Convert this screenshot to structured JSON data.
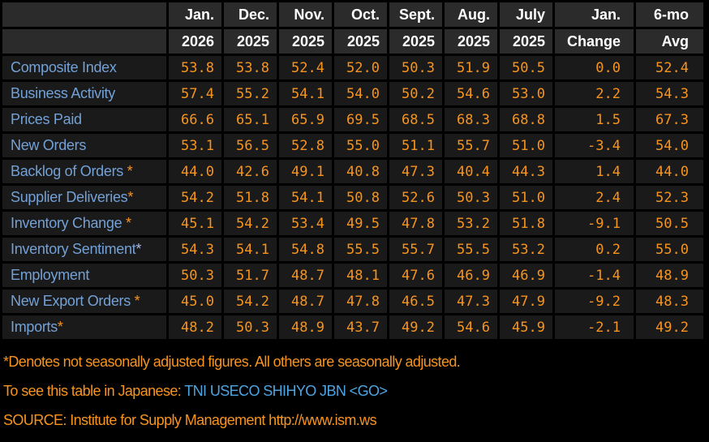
{
  "table": {
    "header_top": [
      "",
      "Jan.",
      "Dec.",
      "Nov.",
      "Oct.",
      "Sept.",
      "Aug.",
      "July",
      "Jan.",
      "6-mo"
    ],
    "header_bottom": [
      "",
      "2026",
      "2025",
      "2025",
      "2025",
      "2025",
      "2025",
      "2025",
      "Change",
      "Avg"
    ],
    "rows": [
      {
        "label": "Composite Index",
        "asterisk": "",
        "asterisk_color": "",
        "values": [
          "53.8",
          "53.8",
          "52.4",
          "52.0",
          "50.3",
          "51.9",
          "50.5",
          "0.0",
          "52.4"
        ]
      },
      {
        "label": "Business Activity",
        "asterisk": "",
        "asterisk_color": "",
        "values": [
          "57.4",
          "55.2",
          "54.1",
          "54.0",
          "50.2",
          "54.6",
          "53.0",
          "2.2",
          "54.3"
        ]
      },
      {
        "label": "Prices Paid",
        "asterisk": "",
        "asterisk_color": "",
        "values": [
          "66.6",
          "65.1",
          "65.9",
          "69.5",
          "68.5",
          "68.3",
          "68.8",
          "1.5",
          "67.3"
        ]
      },
      {
        "label": "New Orders",
        "asterisk": "",
        "asterisk_color": "",
        "values": [
          "53.1",
          "56.5",
          "52.8",
          "55.0",
          "51.1",
          "55.7",
          "51.0",
          "-3.4",
          "54.0"
        ]
      },
      {
        "label": "Backlog of Orders",
        "asterisk": " *",
        "asterisk_color": "amber",
        "values": [
          "44.0",
          "42.6",
          "49.1",
          "40.8",
          "47.3",
          "40.4",
          "44.3",
          "1.4",
          "44.0"
        ]
      },
      {
        "label": "Supplier Deliveries",
        "asterisk": "*",
        "asterisk_color": "amber",
        "values": [
          "54.2",
          "51.8",
          "54.1",
          "50.8",
          "52.6",
          "50.3",
          "51.0",
          "2.4",
          "52.3"
        ]
      },
      {
        "label": "Inventory Change",
        "asterisk": " *",
        "asterisk_color": "amber",
        "values": [
          "45.1",
          "54.2",
          "53.4",
          "49.5",
          "47.8",
          "53.2",
          "51.8",
          "-9.1",
          "50.5"
        ]
      },
      {
        "label": "Inventory Sentiment",
        "asterisk": "*",
        "asterisk_color": "blue",
        "values": [
          "54.3",
          "54.1",
          "54.8",
          "55.5",
          "55.7",
          "55.5",
          "53.2",
          "0.2",
          "55.0"
        ]
      },
      {
        "label": "Employment",
        "asterisk": "",
        "asterisk_color": "",
        "values": [
          "50.3",
          "51.7",
          "48.7",
          "48.1",
          "47.6",
          "46.9",
          "46.9",
          "-1.4",
          "48.9"
        ]
      },
      {
        "label": "New Export Orders",
        "asterisk": " *",
        "asterisk_color": "amber",
        "values": [
          "45.0",
          "54.2",
          "48.7",
          "47.8",
          "46.5",
          "47.3",
          "47.9",
          "-9.2",
          "48.3"
        ]
      },
      {
        "label": "Imports",
        "asterisk": "*",
        "asterisk_color": "amber",
        "values": [
          "48.2",
          "50.3",
          "48.9",
          "43.7",
          "49.2",
          "54.6",
          "45.9",
          "-2.1",
          "49.2"
        ]
      }
    ]
  },
  "footnotes": {
    "line1": "*Denotes not seasonally adjusted figures. All others are seasonally adjusted.",
    "line2_prefix": "To see this table in Japanese: ",
    "line2_command": "TNI USECO SHIHYO JBN <GO>",
    "line3": "SOURCE: Institute for Supply Management http://www.ism.ws"
  },
  "colors": {
    "background": "#000000",
    "header_cell_bg": "#2b2b2b",
    "data_cell_bg": "#1a1a1a",
    "header_text": "#ffffff",
    "label_text": "#73a1d7",
    "value_text": "#f7941e",
    "command_text": "#4fa4e0",
    "blue_asterisk": "#a9b9ea"
  }
}
